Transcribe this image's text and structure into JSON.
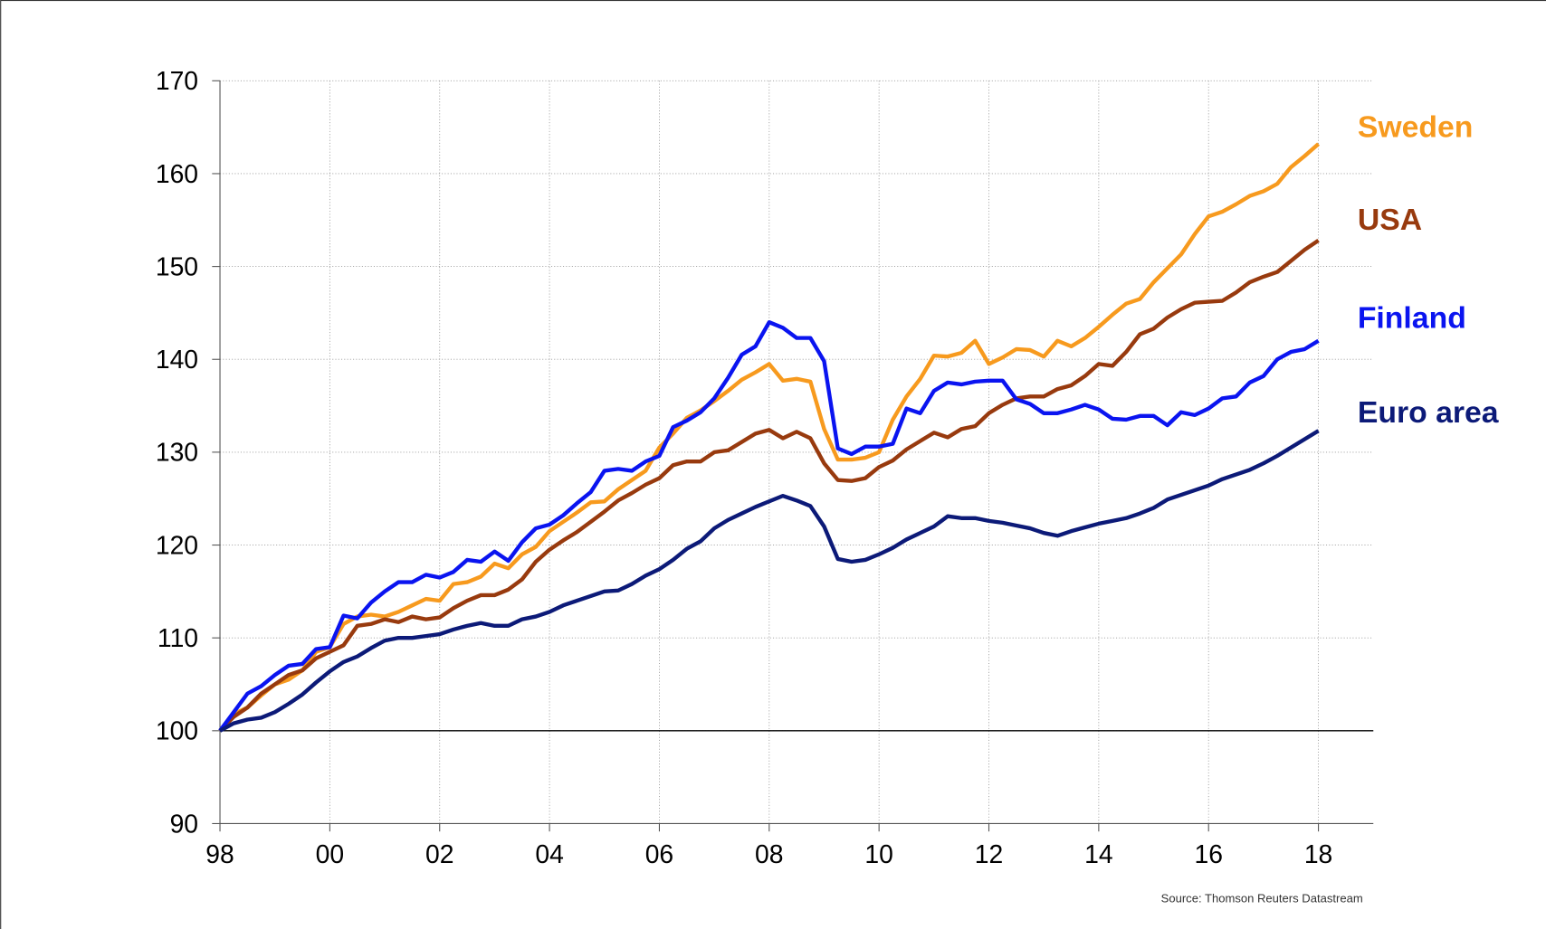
{
  "chart_data": {
    "type": "line",
    "source": "Source: Thomson Reuters Datastream",
    "x": [
      1998,
      1998.25,
      1998.5,
      1998.75,
      1999,
      1999.25,
      1999.5,
      1999.75,
      2000,
      2000.25,
      2000.5,
      2000.75,
      2001,
      2001.25,
      2001.5,
      2001.75,
      2002,
      2002.25,
      2002.5,
      2002.75,
      2003,
      2003.25,
      2003.5,
      2003.75,
      2004,
      2004.25,
      2004.5,
      2004.75,
      2005,
      2005.25,
      2005.5,
      2005.75,
      2006,
      2006.25,
      2006.5,
      2006.75,
      2007,
      2007.25,
      2007.5,
      2007.75,
      2008,
      2008.25,
      2008.5,
      2008.75,
      2009,
      2009.25,
      2009.5,
      2009.75,
      2010,
      2010.25,
      2010.5,
      2010.75,
      2011,
      2011.25,
      2011.5,
      2011.75,
      2012,
      2012.25,
      2012.5,
      2012.75,
      2013,
      2013.25,
      2013.5,
      2013.75,
      2014,
      2014.25,
      2014.5,
      2014.75,
      2015,
      2015.25,
      2015.5,
      2015.75,
      2016,
      2016.25,
      2016.5,
      2016.75,
      2017,
      2017.25,
      2017.5,
      2017.75,
      2018
    ],
    "series": [
      {
        "name": "Sweden",
        "color": "#f79a1e",
        "values": [
          100,
          101.8,
          102.5,
          103.8,
          105,
          105.5,
          106.5,
          108.5,
          109,
          111.5,
          112.3,
          112.5,
          112.3,
          112.8,
          113.5,
          114.2,
          114,
          115.8,
          116,
          116.6,
          118,
          117.5,
          119,
          119.8,
          121.5,
          122.5,
          123.5,
          124.6,
          124.7,
          126,
          127,
          128,
          130.5,
          132,
          133.7,
          134.5,
          135.5,
          136.6,
          137.8,
          138.6,
          139.5,
          137.7,
          137.9,
          137.6,
          132.5,
          129.2,
          129.2,
          129.4,
          130,
          133.5,
          136,
          137.9,
          140.4,
          140.3,
          140.7,
          142,
          139.5,
          140.2,
          141.1,
          141,
          140.3,
          142,
          141.4,
          142.3,
          143.5,
          144.8,
          146,
          146.5,
          148.3,
          149.8,
          151.3,
          153.5,
          155.4,
          155.9,
          156.7,
          157.6,
          158.1,
          158.9,
          160.7,
          161.9,
          163.2
        ]
      },
      {
        "name": "USA",
        "color": "#983a0e",
        "values": [
          100,
          101.5,
          102.5,
          104,
          105,
          106,
          106.5,
          107.8,
          108.5,
          109.2,
          111.3,
          111.5,
          112,
          111.7,
          112.3,
          112,
          112.2,
          113.2,
          114,
          114.6,
          114.6,
          115.2,
          116.3,
          118.2,
          119.5,
          120.5,
          121.4,
          122.5,
          123.6,
          124.8,
          125.6,
          126.5,
          127.2,
          128.6,
          129,
          129,
          130,
          130.2,
          131.1,
          132,
          132.4,
          131.5,
          132.2,
          131.5,
          128.8,
          127,
          126.9,
          127.2,
          128.4,
          129.1,
          130.3,
          131.2,
          132.1,
          131.6,
          132.5,
          132.8,
          134.2,
          135.1,
          135.8,
          136,
          136,
          136.8,
          137.2,
          138.2,
          139.5,
          139.3,
          140.8,
          142.7,
          143.3,
          144.5,
          145.4,
          146.1,
          146.2,
          146.3,
          147.2,
          148.3,
          148.9,
          149.4,
          150.6,
          151.8,
          152.8
        ]
      },
      {
        "name": "Finland",
        "color": "#0a14f0",
        "values": [
          100,
          102,
          104,
          104.8,
          106,
          107,
          107.2,
          108.8,
          109,
          112.4,
          112.1,
          113.8,
          115,
          116,
          116,
          116.8,
          116.5,
          117.1,
          118.4,
          118.2,
          119.3,
          118.3,
          120.3,
          121.8,
          122.2,
          123.2,
          124.5,
          125.7,
          128,
          128.2,
          128,
          129,
          129.6,
          132.7,
          133.4,
          134.3,
          135.8,
          138,
          140.5,
          141.4,
          144,
          143.4,
          142.3,
          142.3,
          139.8,
          130.4,
          129.8,
          130.6,
          130.6,
          130.9,
          134.7,
          134.2,
          136.6,
          137.5,
          137.3,
          137.6,
          137.7,
          137.7,
          135.7,
          135.2,
          134.2,
          134.2,
          134.6,
          135.1,
          134.6,
          133.6,
          133.5,
          133.9,
          133.9,
          132.9,
          134.3,
          134,
          134.7,
          135.8,
          136,
          137.5,
          138.2,
          140,
          140.8,
          141.1,
          142
        ]
      },
      {
        "name": "Euro area",
        "color": "#0c1a78",
        "values": [
          100,
          100.8,
          101.2,
          101.4,
          102,
          102.9,
          103.9,
          105.2,
          106.4,
          107.4,
          108,
          108.9,
          109.7,
          110,
          110,
          110.2,
          110.4,
          110.9,
          111.3,
          111.6,
          111.3,
          111.3,
          112,
          112.3,
          112.8,
          113.5,
          114,
          114.5,
          115,
          115.1,
          115.8,
          116.7,
          117.4,
          118.4,
          119.6,
          120.4,
          121.8,
          122.7,
          123.4,
          124.1,
          124.7,
          125.3,
          124.8,
          124.2,
          122,
          118.5,
          118.2,
          118.4,
          119,
          119.7,
          120.6,
          121.3,
          122,
          123.1,
          122.9,
          122.9,
          122.6,
          122.4,
          122.1,
          121.8,
          121.3,
          121,
          121.5,
          121.9,
          122.3,
          122.6,
          122.9,
          123.4,
          124,
          124.9,
          125.4,
          125.9,
          126.4,
          127.1,
          127.6,
          128.1,
          128.8,
          129.6,
          130.5,
          131.4,
          132.3
        ]
      }
    ],
    "xlim": [
      1998,
      2019
    ],
    "xticks": [
      {
        "value": 1998,
        "label": "98"
      },
      {
        "value": 2000,
        "label": "00"
      },
      {
        "value": 2002,
        "label": "02"
      },
      {
        "value": 2004,
        "label": "04"
      },
      {
        "value": 2006,
        "label": "06"
      },
      {
        "value": 2008,
        "label": "08"
      },
      {
        "value": 2010,
        "label": "10"
      },
      {
        "value": 2012,
        "label": "12"
      },
      {
        "value": 2014,
        "label": "14"
      },
      {
        "value": 2016,
        "label": "16"
      },
      {
        "value": 2018,
        "label": "18"
      }
    ],
    "ylim": [
      90,
      170
    ],
    "yticks": [
      90,
      100,
      110,
      120,
      130,
      140,
      150,
      160,
      170
    ],
    "reference_line": 100,
    "grid": true
  }
}
